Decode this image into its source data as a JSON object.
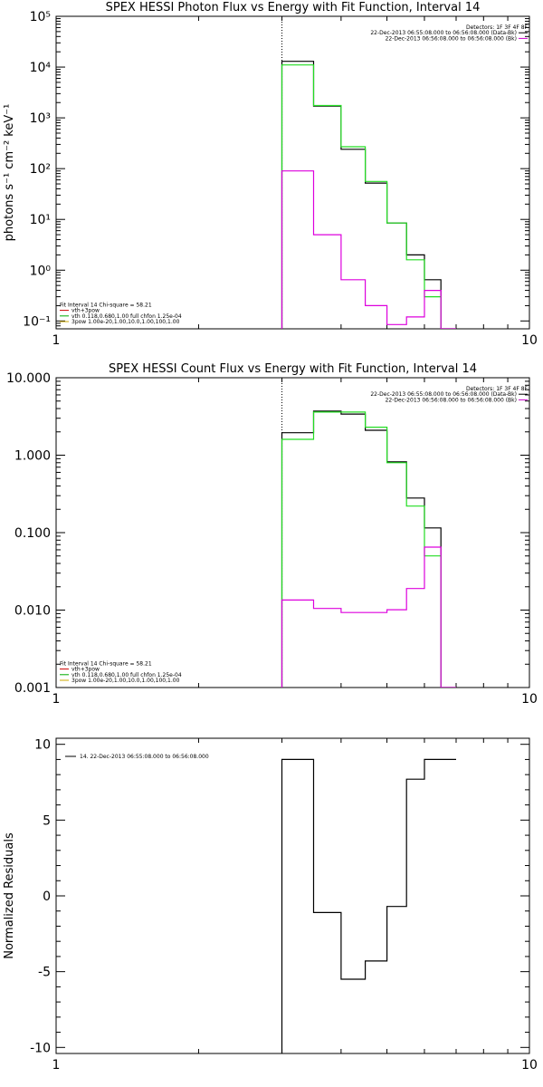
{
  "chart_data": [
    {
      "type": "line",
      "title": "SPEX HESSI Photon Flux vs Energy with Fit Function, Interval 14",
      "ylabel": "photons s⁻¹ cm⁻² keV⁻¹",
      "xlabel": "",
      "xscale": "log",
      "yscale": "log",
      "xlim": [
        1,
        10
      ],
      "ylim": [
        0.07,
        100000
      ],
      "x_ticklabels": [
        "1",
        "10"
      ],
      "y_ticks": [
        0.1,
        1,
        10,
        100,
        1000,
        10000,
        100000
      ],
      "y_ticklabels": [
        "10⁻¹",
        "10⁰",
        "10¹",
        "10²",
        "10³",
        "10⁴",
        "10⁵"
      ],
      "vline_x": 3.0,
      "legend_topright": [
        {
          "text": "Detectors: 1F 3F 4F 8F",
          "color": ""
        },
        {
          "text": "22-Dec-2013 06:55:08.000 to 06:56:08.000 (Data-Bk)",
          "color": "#000000"
        },
        {
          "text": "22-Dec-2013 06:56:08.000 to 06:56:08.000 (Bk)",
          "color": "#cc00cc"
        }
      ],
      "legend_bottomleft": [
        {
          "text": "Fit Interval 14   Chi-square = 58.21",
          "color": ""
        },
        {
          "text": "vth+3pow",
          "color": "#cc0000"
        },
        {
          "text": "vth 0.118,0.680,1.00   full chfon 1.25e-04",
          "color": "#00aa00"
        },
        {
          "text": "3pow 1.00e-20,1.00,10.0,1.00,100,1.00",
          "color": "#ccaa00"
        }
      ],
      "series": [
        {
          "color": "#000000",
          "steps": [
            [
              3.0,
              3.5,
              13000
            ],
            [
              3.5,
              4.0,
              1700
            ],
            [
              4.0,
              4.5,
              240
            ],
            [
              4.5,
              5.0,
              52
            ],
            [
              5.0,
              5.5,
              8.5
            ],
            [
              5.5,
              6.0,
              2.0
            ],
            [
              6.0,
              6.5,
              0.65
            ],
            [
              6.5,
              7.0,
              0.07
            ]
          ]
        },
        {
          "color": "#22dd22",
          "steps": [
            [
              3.0,
              3.5,
              11000
            ],
            [
              3.5,
              4.0,
              1750
            ],
            [
              4.0,
              4.5,
              270
            ],
            [
              4.5,
              5.0,
              56
            ],
            [
              5.0,
              5.5,
              8.5
            ],
            [
              5.5,
              6.0,
              1.6
            ],
            [
              6.0,
              6.5,
              0.3
            ],
            [
              6.5,
              7.0,
              0.07
            ]
          ]
        },
        {
          "color": "#dd00dd",
          "steps": [
            [
              3.0,
              3.5,
              90
            ],
            [
              3.5,
              4.0,
              5.0
            ],
            [
              4.0,
              4.5,
              0.65
            ],
            [
              4.5,
              5.0,
              0.2
            ],
            [
              5.0,
              5.5,
              0.085
            ],
            [
              5.5,
              6.0,
              0.12
            ],
            [
              6.0,
              6.5,
              0.4
            ],
            [
              6.5,
              7.0,
              0.07
            ]
          ]
        }
      ]
    },
    {
      "type": "line",
      "title": "SPEX HESSI Count Flux vs Energy with Fit Function, Interval 14",
      "ylabel": "",
      "xlabel": "",
      "xscale": "log",
      "yscale": "log",
      "xlim": [
        1,
        10
      ],
      "ylim": [
        0.001,
        10
      ],
      "x_ticklabels": [
        "1",
        "10"
      ],
      "y_ticks": [
        0.001,
        0.01,
        0.1,
        1,
        10
      ],
      "y_ticklabels": [
        "0.001",
        "0.010",
        "0.100",
        "1.000",
        "10.000"
      ],
      "vline_x": 3.0,
      "legend_topright": [
        {
          "text": "Detectors: 1F 3F 4F 8F",
          "color": ""
        },
        {
          "text": "22-Dec-2013 06:55:08.000 to 06:56:08.000 (Data-Bk)",
          "color": "#000000"
        },
        {
          "text": "22-Dec-2013 06:56:08.000 to 06:56:08.000 (Bk)",
          "color": "#cc00cc"
        }
      ],
      "legend_bottomleft": [
        {
          "text": "Fit Interval 14   Chi-square = 58.21",
          "color": ""
        },
        {
          "text": "vth+3pow",
          "color": "#cc0000"
        },
        {
          "text": "vth 0.118,0.680,1.00   full chfon 1.25e-04",
          "color": "#00aa00"
        },
        {
          "text": "3pow 1.00e-20,1.00,10.0,1.00,100,1.00",
          "color": "#ccaa00"
        }
      ],
      "series": [
        {
          "color": "#000000",
          "steps": [
            [
              3.0,
              3.5,
              1.95
            ],
            [
              3.5,
              4.0,
              3.7
            ],
            [
              4.0,
              4.5,
              3.4
            ],
            [
              4.5,
              5.0,
              2.1
            ],
            [
              5.0,
              5.5,
              0.82
            ],
            [
              5.5,
              6.0,
              0.28
            ],
            [
              6.0,
              6.5,
              0.115
            ],
            [
              6.5,
              7.0,
              0.001
            ]
          ]
        },
        {
          "color": "#22dd22",
          "steps": [
            [
              3.0,
              3.5,
              1.6
            ],
            [
              3.5,
              4.0,
              3.6
            ],
            [
              4.0,
              4.5,
              3.6
            ],
            [
              4.5,
              5.0,
              2.3
            ],
            [
              5.0,
              5.5,
              0.8
            ],
            [
              5.5,
              6.0,
              0.22
            ],
            [
              6.0,
              6.5,
              0.05
            ],
            [
              6.5,
              7.0,
              0.001
            ]
          ]
        },
        {
          "color": "#dd00dd",
          "steps": [
            [
              3.0,
              3.5,
              0.0135
            ],
            [
              3.5,
              4.0,
              0.0105
            ],
            [
              4.0,
              4.5,
              0.0093
            ],
            [
              4.5,
              5.0,
              0.0093
            ],
            [
              5.0,
              5.5,
              0.0101
            ],
            [
              5.5,
              6.0,
              0.019
            ],
            [
              6.0,
              6.5,
              0.065
            ],
            [
              6.5,
              7.0,
              0.001
            ]
          ]
        }
      ]
    },
    {
      "type": "line",
      "title": "",
      "ylabel": "Normalized Residuals",
      "xlabel": "",
      "xscale": "log",
      "yscale": "linear",
      "xlim": [
        1,
        10
      ],
      "ylim": [
        -10.4,
        10.4
      ],
      "x_ticklabels": [
        "1",
        "10"
      ],
      "y_ticks": [
        -10,
        -5,
        0,
        5,
        10
      ],
      "y_ticklabels": [
        "-10",
        "-5",
        "0",
        "5",
        "10"
      ],
      "legend_topleft": [
        {
          "text": "14. 22-Dec-2013 06:55:08.000 to 06:56:08.000",
          "color": "#000000"
        }
      ],
      "series": [
        {
          "color": "#000000",
          "steps": [
            [
              3.0,
              3.5,
              9.0
            ],
            [
              3.5,
              4.0,
              -1.1
            ],
            [
              4.0,
              4.5,
              -5.5
            ],
            [
              4.5,
              5.0,
              -4.3
            ],
            [
              5.0,
              5.5,
              -0.7
            ],
            [
              5.5,
              6.0,
              7.7
            ],
            [
              6.0,
              6.5,
              9.0
            ],
            [
              6.5,
              7.0,
              9.0
            ]
          ]
        }
      ]
    }
  ]
}
